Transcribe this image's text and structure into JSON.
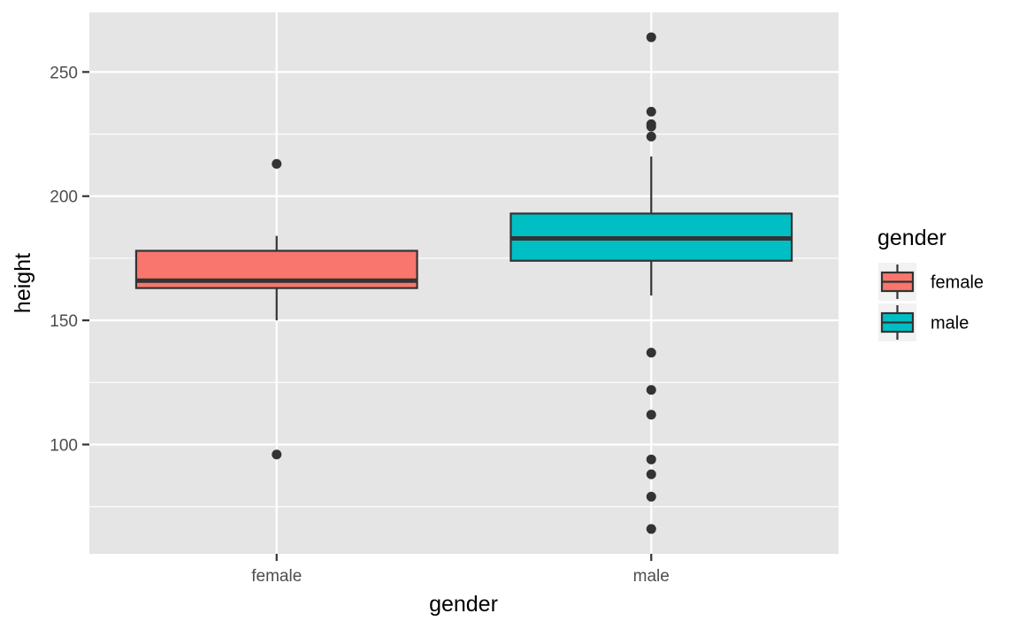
{
  "chart_data": {
    "type": "boxplot",
    "xlabel": "gender",
    "ylabel": "height",
    "categories": [
      "female",
      "male"
    ],
    "ylim": [
      56,
      274
    ],
    "yticks": [
      100,
      150,
      200,
      250
    ],
    "grid": true,
    "legend": {
      "title": "gender",
      "position": "right",
      "entries": [
        "female",
        "male"
      ]
    },
    "colors": {
      "female": "#F8766D",
      "male": "#00BFC4",
      "panel_background": "#E5E5E5",
      "grid": "#FFFFFF",
      "outline": "#333333",
      "legend_key_background": "#F2F2F2"
    },
    "boxes": [
      {
        "category": "female",
        "whisker_low": 150,
        "q1": 163,
        "median": 166,
        "q3": 178,
        "whisker_high": 184,
        "outliers": [
          213,
          96
        ]
      },
      {
        "category": "male",
        "whisker_low": 160,
        "q1": 174,
        "median": 183,
        "q3": 193,
        "whisker_high": 216,
        "outliers": [
          264,
          234,
          229,
          228,
          224,
          137,
          122,
          112,
          94,
          88,
          79,
          66
        ]
      }
    ]
  }
}
